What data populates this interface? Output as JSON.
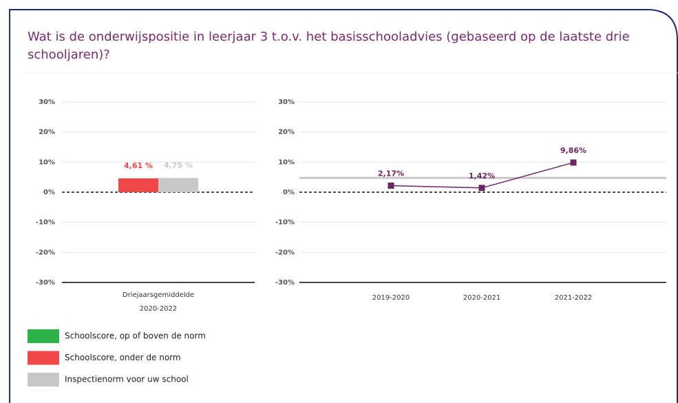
{
  "title": "Wat is de onderwijspositie in leerjaar 3 t.o.v. het basisschooladvies (gebaseerd op de laatste drie schooljaren)?",
  "title_lines": [
    "Wat is de onderwijspositie in leerjaar 3 t.o.v. het basisschooladvies (gebaseerd op de laatste drie",
    "schooljaren)?"
  ],
  "legend": [
    {
      "label": "Schoolscore, op of boven de norm",
      "color": "#2db34a"
    },
    {
      "label": "Schoolscore, onder de norm",
      "color": "#f04848"
    },
    {
      "label": "Inspectienorm voor uw school",
      "color": "#c8c8c8"
    }
  ],
  "chart_data": [
    {
      "type": "bar",
      "categories": [
        [
          "Driejaarsgemiddelde",
          "2020-2022"
        ]
      ],
      "series": [
        {
          "color": "#f04848",
          "values": [
            4.61
          ],
          "value_labels": [
            "4,61 %"
          ]
        },
        {
          "color": "#c8c8c8",
          "values": [
            4.75
          ],
          "value_labels": [
            "4,75 %"
          ]
        }
      ],
      "ylim": [
        -30,
        30
      ],
      "yticks": [
        {
          "value": -30,
          "label": "-30%"
        },
        {
          "value": -20,
          "label": "-20%"
        },
        {
          "value": -10,
          "label": "-10%"
        },
        {
          "value": 0,
          "label": "0%"
        },
        {
          "value": 10,
          "label": "10%"
        },
        {
          "value": 20,
          "label": "20%"
        },
        {
          "value": 30,
          "label": "30%"
        }
      ],
      "grid": true
    },
    {
      "type": "line",
      "categories": [
        "2019-2020",
        "2020-2021",
        "2021-2022"
      ],
      "values": [
        2.17,
        1.42,
        9.86
      ],
      "value_labels": [
        "2,17%",
        "1,42%",
        "9,86%"
      ],
      "color": "#6b2560",
      "reference_line": 4.75,
      "reference_color": "#c8c8c8",
      "ylim": [
        -30,
        30
      ],
      "yticks": [
        {
          "value": -30,
          "label": "-30%"
        },
        {
          "value": -20,
          "label": "-20%"
        },
        {
          "value": -10,
          "label": "-10%"
        },
        {
          "value": 0,
          "label": "0%"
        },
        {
          "value": 10,
          "label": "10%"
        },
        {
          "value": 20,
          "label": "20%"
        },
        {
          "value": 30,
          "label": "30%"
        }
      ],
      "grid": true
    }
  ]
}
